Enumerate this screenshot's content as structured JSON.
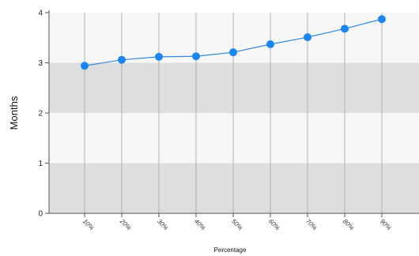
{
  "chart_data": {
    "type": "line",
    "title": "",
    "xlabel": "Percentage",
    "ylabel": "Months",
    "categories": [
      "10%",
      "20%",
      "30%",
      "40%",
      "50%",
      "60%",
      "70%",
      "80%",
      "90%"
    ],
    "series": [
      {
        "values": [
          2.94,
          3.06,
          3.12,
          3.13,
          3.21,
          3.37,
          3.51,
          3.68,
          3.87
        ]
      }
    ],
    "yticks": [
      0,
      1,
      2,
      3,
      4
    ],
    "ylim": [
      0,
      4
    ],
    "grid": {
      "vertical": true,
      "horizontal_bands": true
    },
    "colors": {
      "line": "#2f8ae0",
      "marker": "#1a87f0",
      "band": "#dedede",
      "plot_bg": "#f7f7f7",
      "grid": "#b3b3b3",
      "axis": "#555555"
    }
  }
}
